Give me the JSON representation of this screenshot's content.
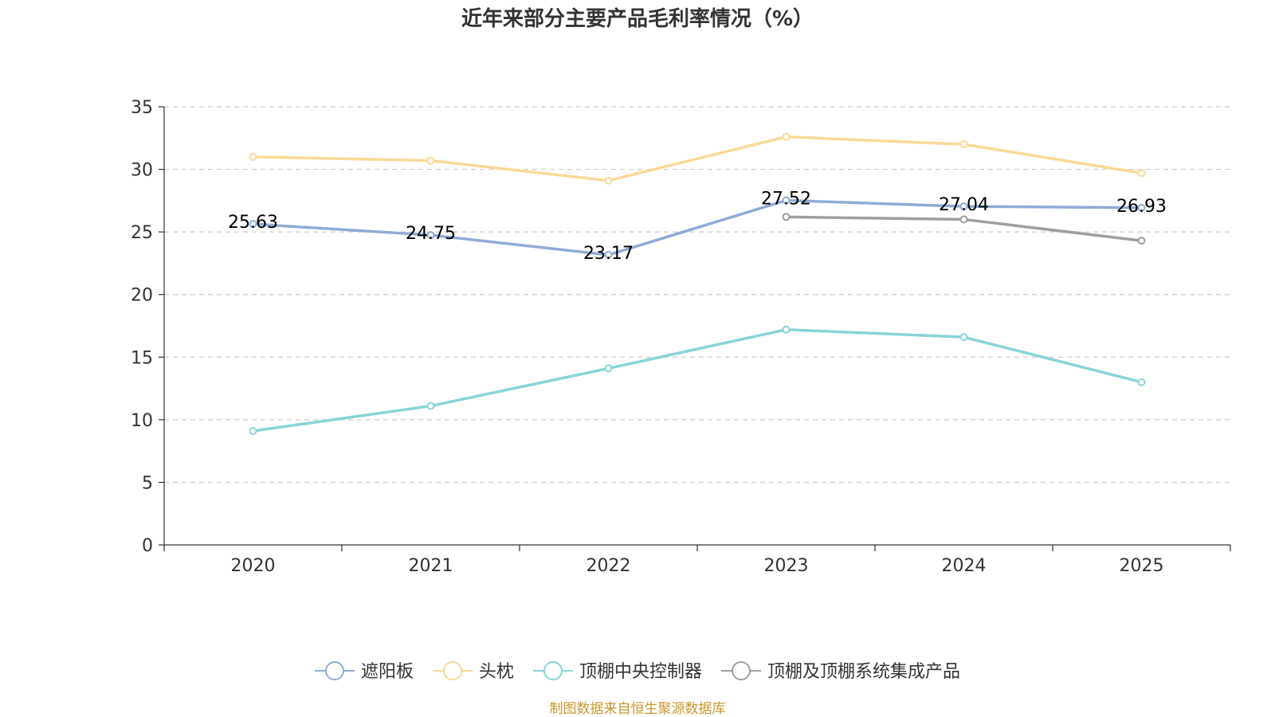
{
  "chart_data": {
    "type": "line",
    "title": "近年来部分主要产品毛利率情况（%）",
    "categories": [
      "2020",
      "2021",
      "2022",
      "2023",
      "2024",
      "2025"
    ],
    "ylim": [
      0,
      35
    ],
    "yticks": [
      0,
      5,
      10,
      15,
      20,
      25,
      30,
      35
    ],
    "grid": true,
    "legend_position": "bottom-center",
    "series": [
      {
        "name": "遮阳板",
        "color": "#8fabd6",
        "values": [
          25.63,
          24.75,
          23.17,
          27.52,
          27.04,
          26.93
        ],
        "labels": [
          "25.63",
          "24.75",
          "23.17",
          "27.52",
          "27.04",
          "26.93"
        ]
      },
      {
        "name": "头枕",
        "color": "#fad996",
        "values": [
          31.0,
          30.7,
          29.1,
          32.6,
          32.0,
          29.7
        ]
      },
      {
        "name": "顶棚中央控制器",
        "color": "#88d4d7",
        "values": [
          9.1,
          11.1,
          14.1,
          17.2,
          16.6,
          13.0
        ]
      },
      {
        "name": "顶棚及顶棚系统集成产品",
        "color": "#9e9e9e",
        "values": [
          null,
          null,
          null,
          26.2,
          26.0,
          24.3
        ]
      }
    ]
  },
  "footer": {
    "source": "制图数据来自恒生聚源数据库",
    "source_color": "#c8962e"
  }
}
